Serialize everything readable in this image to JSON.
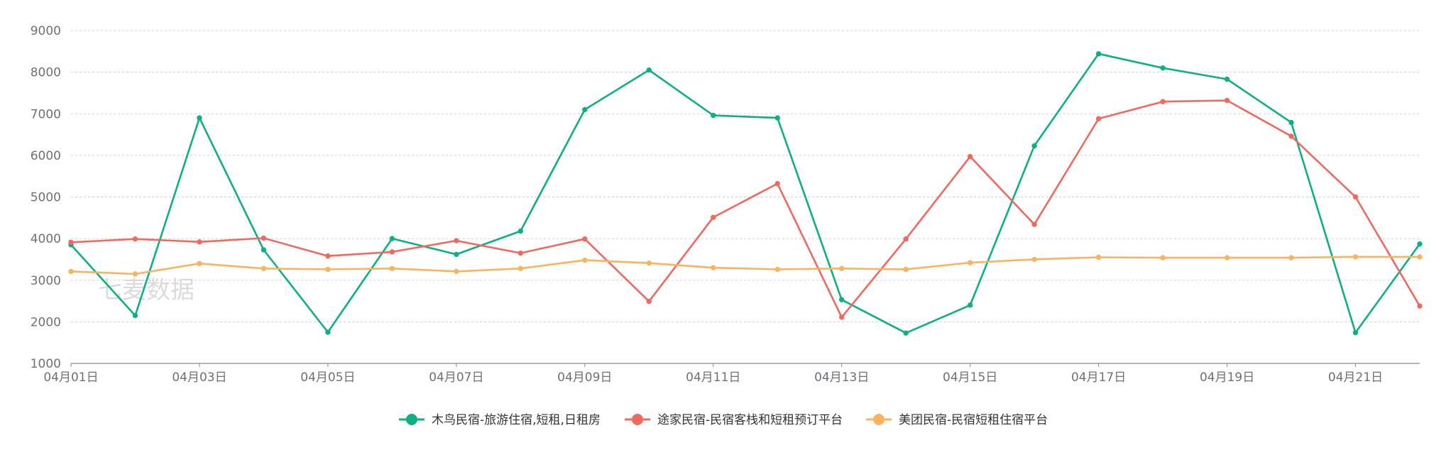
{
  "watermark": "七麦数据",
  "chart_data": {
    "type": "line",
    "categories": [
      "04月01日",
      "04月02日",
      "04月03日",
      "04月04日",
      "04月05日",
      "04月06日",
      "04月07日",
      "04月08日",
      "04月09日",
      "04月10日",
      "04月11日",
      "04月12日",
      "04月13日",
      "04月14日",
      "04月15日",
      "04月16日",
      "04月17日",
      "04月18日",
      "04月19日",
      "04月20日",
      "04月21日",
      "04月22日"
    ],
    "x_tick_labels": [
      "04月01日",
      "04月03日",
      "04月05日",
      "04月07日",
      "04月09日",
      "04月11日",
      "04月13日",
      "04月15日",
      "04月17日",
      "04月19日",
      "04月21日"
    ],
    "ylim": [
      1000,
      9000
    ],
    "y_ticks": [
      1000,
      2000,
      3000,
      4000,
      5000,
      6000,
      7000,
      8000,
      9000
    ],
    "grid": true,
    "legend_position": "bottom",
    "series": [
      {
        "name": "木鸟民宿-旅游住宿,短租,日租房",
        "color": "#0eaf85",
        "values": [
          3850,
          2150,
          6900,
          3730,
          1750,
          4000,
          3620,
          4180,
          7100,
          8050,
          6960,
          6900,
          2530,
          1730,
          2400,
          6230,
          8440,
          8100,
          7830,
          6790,
          1740,
          3870
        ]
      },
      {
        "name": "途家民宿-民宿客栈和短租预订平台",
        "color": "#f0695e",
        "values": [
          3910,
          3990,
          3920,
          4010,
          3580,
          3680,
          3950,
          3650,
          3990,
          2490,
          4510,
          5320,
          2110,
          3990,
          5970,
          4340,
          6880,
          7290,
          7320,
          6460,
          5000,
          2380
        ]
      },
      {
        "name": "美团民宿-民宿短租住宿平台",
        "color": "#f9b35f",
        "values": [
          3210,
          3150,
          3400,
          3280,
          3260,
          3280,
          3210,
          3280,
          3480,
          3410,
          3300,
          3260,
          3280,
          3260,
          3420,
          3500,
          3550,
          3540,
          3540,
          3540,
          3560,
          3560
        ]
      }
    ]
  }
}
